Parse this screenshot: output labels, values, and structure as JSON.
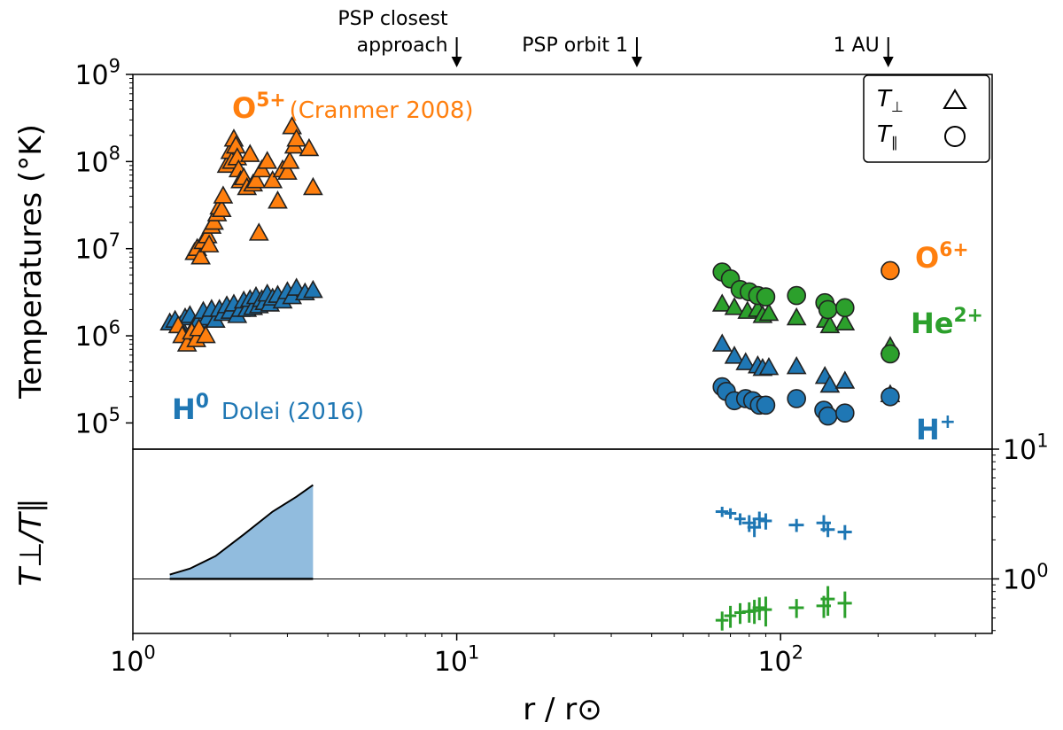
{
  "chart_data": [
    {
      "panel": "top",
      "type": "scatter",
      "x_scale": "log",
      "y_scale": "log",
      "xlim": [
        1.0,
        450
      ],
      "ylim": [
        50000,
        1000000000
      ],
      "xlabel": "r / r⊙",
      "ylabel": "Temperatures (°K)",
      "x_ticks": [
        {
          "base": "10",
          "exp": "0",
          "value": 1
        },
        {
          "base": "10",
          "exp": "1",
          "value": 10
        },
        {
          "base": "10",
          "exp": "2",
          "value": 100
        }
      ],
      "y_ticks": [
        {
          "base": "10",
          "exp": "5",
          "value": 100000
        },
        {
          "base": "10",
          "exp": "6",
          "value": 1000000
        },
        {
          "base": "10",
          "exp": "7",
          "value": 10000000
        },
        {
          "base": "10",
          "exp": "8",
          "value": 100000000
        },
        {
          "base": "10",
          "exp": "9",
          "value": 1000000000
        }
      ],
      "annotations": [
        {
          "lines": [
            "PSP closest",
            "approach"
          ],
          "x": 10
        },
        {
          "lines": [
            "PSP orbit 1"
          ],
          "x": 36
        },
        {
          "lines": [
            "1 AU"
          ],
          "x": 215
        }
      ],
      "legend": {
        "position": "top-right",
        "entries": [
          {
            "main": "T",
            "sub": "⊥",
            "marker": "triangle"
          },
          {
            "main": "T",
            "sub": "∥",
            "marker": "circle"
          }
        ]
      },
      "series_labels": [
        {
          "id": "o5",
          "species": "O",
          "charge": "5+",
          "source": "(Cranmer 2008)",
          "color": "#ff7f0e"
        },
        {
          "id": "h0",
          "species": "H",
          "charge": "0",
          "source": "Dolei (2016)",
          "color": "#1f77b4"
        },
        {
          "id": "o6",
          "species": "O",
          "charge": "6+",
          "source": "",
          "color": "#ff7f0e"
        },
        {
          "id": "he2",
          "species": "He",
          "charge": "2+",
          "source": "",
          "color": "#2ca02c"
        },
        {
          "id": "hp",
          "species": "H",
          "charge": "+",
          "source": "",
          "color": "#1f77b4"
        }
      ],
      "series": [
        {
          "name": "O5+ T_perp (Cranmer 2008)",
          "marker": "triangle",
          "color": "#ff7f0e",
          "x": [
            1.55,
            1.58,
            1.62,
            1.65,
            1.7,
            1.72,
            1.75,
            1.78,
            1.82,
            1.85,
            1.88,
            1.9,
            1.95,
            2.0,
            2.02,
            2.05,
            2.08,
            2.1,
            2.12,
            2.15,
            2.2,
            2.25,
            2.3,
            2.35,
            2.4,
            2.45,
            2.5,
            2.6,
            2.7,
            2.8,
            2.9,
            3.0,
            3.05,
            3.1,
            3.15,
            3.2,
            3.5,
            3.6
          ],
          "y": [
            9000000.0,
            10000000.0,
            8000000.0,
            12000000.0,
            14000000.0,
            11000000.0,
            18000000.0,
            20000000.0,
            25000000.0,
            30000000.0,
            28000000.0,
            40000000.0,
            90000000.0,
            130000000.0,
            100000000.0,
            180000000.0,
            150000000.0,
            110000000.0,
            80000000.0,
            60000000.0,
            65000000.0,
            50000000.0,
            120000000.0,
            55000000.0,
            60000000.0,
            15000000.0,
            80000000.0,
            100000000.0,
            60000000.0,
            35000000.0,
            80000000.0,
            75000000.0,
            100000000.0,
            250000000.0,
            150000000.0,
            180000000.0,
            140000000.0,
            50000000.0
          ]
        },
        {
          "name": "H0 T_perp Dolei (2016)",
          "marker": "triangle",
          "color": "#1f77b4",
          "x": [
            1.3,
            1.35,
            1.4,
            1.45,
            1.5,
            1.55,
            1.6,
            1.65,
            1.7,
            1.75,
            1.8,
            1.85,
            1.9,
            1.95,
            2.0,
            2.05,
            2.1,
            2.15,
            2.2,
            2.25,
            2.3,
            2.35,
            2.4,
            2.45,
            2.5,
            2.55,
            2.6,
            2.65,
            2.7,
            2.8,
            2.9,
            3.0,
            3.1,
            3.2,
            3.4,
            3.6
          ],
          "y": [
            1400000.0,
            1500000.0,
            1300000.0,
            1600000.0,
            1700000.0,
            1300000.0,
            1500000.0,
            1900000.0,
            1600000.0,
            2000000.0,
            1500000.0,
            2000000.0,
            1800000.0,
            2200000.0,
            1900000.0,
            2300000.0,
            1700000.0,
            2000000.0,
            2500000.0,
            2000000.0,
            2600000.0,
            2100000.0,
            2800000.0,
            2200000.0,
            2600000.0,
            2400000.0,
            3000000.0,
            2300000.0,
            2700000.0,
            2900000.0,
            2500000.0,
            3200000.0,
            2800000.0,
            3500000.0,
            3100000.0,
            3300000.0
          ]
        },
        {
          "name": "O5+ T_perp low group",
          "marker": "triangle",
          "color": "#ff7f0e",
          "x": [
            1.38,
            1.42,
            1.47,
            1.52,
            1.57,
            1.6,
            1.68
          ],
          "y": [
            1300000.0,
            1000000.0,
            800000.0,
            1100000.0,
            900000.0,
            1200000.0,
            1000000.0
          ]
        },
        {
          "name": "He2+ T_perp",
          "marker": "triangle",
          "color": "#2ca02c",
          "x": [
            66,
            72,
            79,
            85,
            88,
            92,
            112,
            138,
            142,
            158,
            218
          ],
          "y": [
            2300000.0,
            2100000.0,
            1900000.0,
            2000000.0,
            1700000.0,
            1800000.0,
            1600000.0,
            1500000.0,
            1300000.0,
            1400000.0,
            750000.0
          ]
        },
        {
          "name": "He2+ T_par",
          "marker": "circle",
          "color": "#2ca02c",
          "x": [
            66,
            70,
            75,
            80,
            85,
            90,
            112,
            137,
            140,
            158,
            218
          ],
          "y": [
            5400000.0,
            4500000.0,
            3400000.0,
            3200000.0,
            2900000.0,
            2800000.0,
            2900000.0,
            2400000.0,
            2000000.0,
            2100000.0,
            620000.0
          ]
        },
        {
          "name": "H+ T_perp",
          "marker": "triangle",
          "color": "#1f77b4",
          "x": [
            66,
            72,
            78,
            85,
            88,
            92,
            112,
            137,
            142,
            158,
            218
          ],
          "y": [
            800000.0,
            580000.0,
            490000.0,
            450000.0,
            420000.0,
            430000.0,
            440000.0,
            340000.0,
            270000.0,
            300000.0,
            210000.0
          ]
        },
        {
          "name": "H+ T_par",
          "marker": "circle",
          "color": "#1f77b4",
          "x": [
            66,
            68,
            72,
            78,
            82,
            86,
            90,
            112,
            136,
            140,
            158,
            218
          ],
          "y": [
            260000.0,
            230000.0,
            180000.0,
            190000.0,
            180000.0,
            160000.0,
            160000.0,
            190000.0,
            140000.0,
            120000.0,
            130000.0,
            200000.0
          ]
        },
        {
          "name": "O6+ T_par",
          "marker": "circle",
          "color": "#ff7f0e",
          "x": [
            218
          ],
          "y": [
            5600000.0
          ]
        }
      ]
    },
    {
      "panel": "bottom",
      "type": "errorbar+area",
      "x_scale": "log",
      "y_scale": "log",
      "xlim": [
        1.0,
        450
      ],
      "ylim": [
        0.38,
        10
      ],
      "ylabel": "T⊥/T∥",
      "xlabel": "r / r⊙",
      "y_ticks": [
        {
          "base": "10",
          "exp": "1",
          "value": 10
        },
        {
          "base": "10",
          "exp": "0",
          "value": 1
        }
      ],
      "reference_line": 1.0,
      "area": {
        "name": "Dolei (2016) anisotropy",
        "color": "#91bcde",
        "x": [
          1.3,
          1.5,
          1.8,
          2.2,
          2.7,
          3.2,
          3.6
        ],
        "y": [
          1.08,
          1.2,
          1.5,
          2.2,
          3.3,
          4.3,
          5.3
        ]
      },
      "errorbar_series": [
        {
          "name": "H+ anisotropy",
          "color": "#1f77b4",
          "x": [
            66,
            70,
            75,
            80,
            83,
            86,
            90,
            112,
            136,
            140,
            158
          ],
          "y": [
            3.3,
            3.2,
            2.9,
            2.7,
            2.5,
            2.9,
            2.8,
            2.6,
            2.7,
            2.4,
            2.3
          ],
          "xerr": [
            3,
            3,
            3,
            4,
            4,
            4,
            4,
            6,
            7,
            7,
            8
          ],
          "yerr": [
            0.3,
            0.3,
            0.3,
            0.4,
            0.4,
            0.4,
            0.4,
            0.3,
            0.4,
            0.3,
            0.3
          ]
        },
        {
          "name": "He2+ anisotropy",
          "color": "#2ca02c",
          "x": [
            66,
            70,
            75,
            80,
            83,
            86,
            90,
            112,
            136,
            140,
            158
          ],
          "y": [
            0.48,
            0.52,
            0.55,
            0.56,
            0.57,
            0.6,
            0.58,
            0.6,
            0.62,
            0.7,
            0.65
          ],
          "xerr": [
            3,
            3,
            3,
            4,
            4,
            4,
            4,
            6,
            7,
            7,
            8
          ],
          "yerr": [
            0.08,
            0.1,
            0.1,
            0.1,
            0.12,
            0.12,
            0.15,
            0.1,
            0.12,
            0.18,
            0.15
          ]
        }
      ],
      "x_ticks": [
        {
          "base": "10",
          "exp": "0",
          "value": 1
        },
        {
          "base": "10",
          "exp": "1",
          "value": 10
        },
        {
          "base": "10",
          "exp": "2",
          "value": 100
        }
      ]
    }
  ]
}
